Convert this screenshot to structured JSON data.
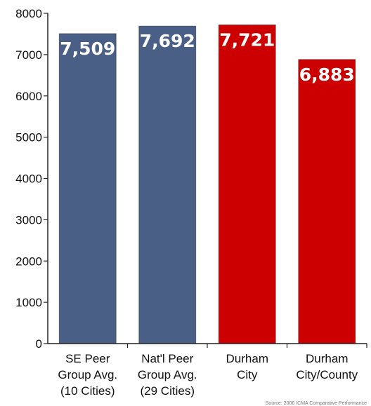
{
  "chart_data": {
    "type": "bar",
    "title": "",
    "xlabel": "",
    "ylabel": "",
    "ylim": [
      0,
      8000
    ],
    "yticks": [
      0,
      1000,
      2000,
      3000,
      4000,
      5000,
      6000,
      7000,
      8000
    ],
    "grid": false,
    "legend": "none",
    "categories": [
      [
        "SE Peer",
        "Group Avg.",
        "(10 Cities)"
      ],
      [
        "Nat'l Peer",
        "Group Avg.",
        "(29 Cities)"
      ],
      [
        "Durham",
        "City"
      ],
      [
        "Durham",
        "City/County"
      ]
    ],
    "values": [
      7509,
      7692,
      7721,
      6883
    ],
    "value_labels": [
      "7,509",
      "7,692",
      "7,721",
      "6,883"
    ],
    "colors": [
      "#4a5f85",
      "#4a5f85",
      "#cc0000",
      "#cc0000"
    ],
    "source_note": "Source: 2006 ICMA Comparative Performance"
  }
}
